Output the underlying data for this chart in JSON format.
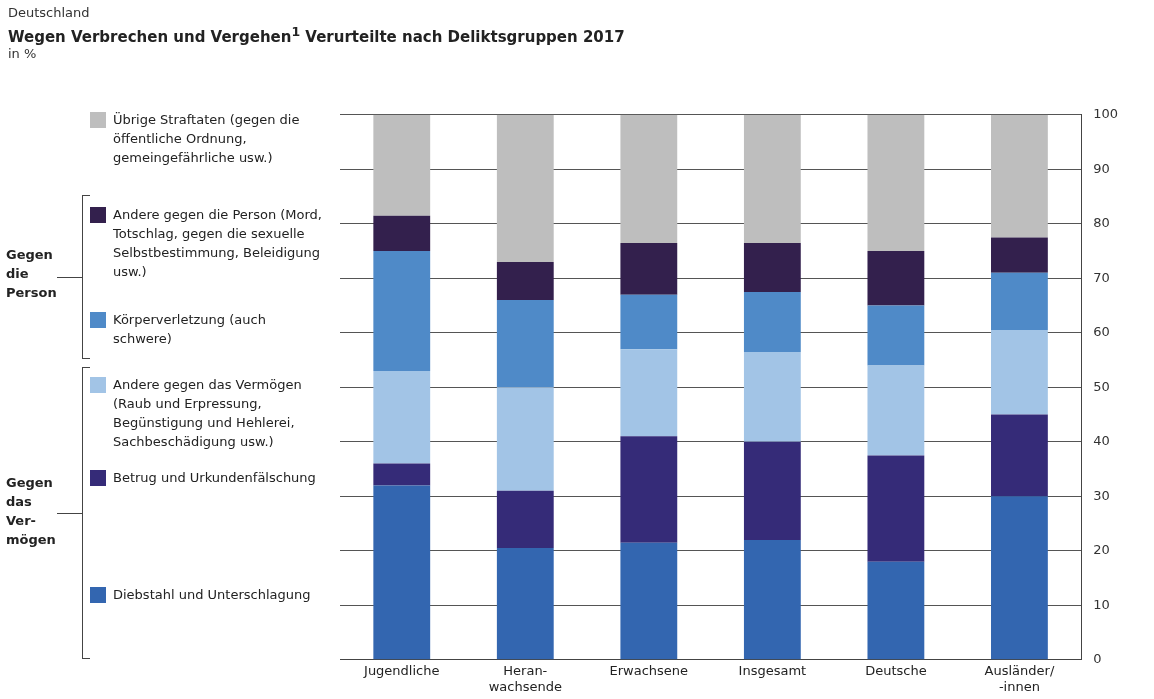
{
  "chart_data": {
    "type": "bar",
    "stacked": true,
    "subtitle": "Deutschland",
    "title": "Wegen Verbrechen und Vergehen$^{1}$ Verurteilte nach Deliktsgruppen 2017",
    "categories": [
      "Jugendliche",
      "Heran-\nwachsende",
      "Erwachsene",
      "Insgesamt",
      "Deutsche",
      "Ausländer/\n-innen"
    ],
    "series": [
      {
        "name": "Diebstahl und Unterschlagung",
        "color": "#3366b0",
        "values": [
          32,
          20.5,
          21.5,
          22,
          18,
          30
        ]
      },
      {
        "name": "Betrug und Urkundenfälschung",
        "color": "#352b78",
        "values": [
          4,
          10.5,
          19.5,
          18,
          19.5,
          15
        ]
      },
      {
        "name": "Andere gegen das Vermögen (Raub und Erpressung, Begünstigung und Hehlerei, Sachbeschädigung usw.)",
        "color": "#a2c4e6",
        "values": [
          17,
          19,
          16,
          16.5,
          16.5,
          15.5
        ]
      },
      {
        "name": "Körperverletzung (auch schwere)",
        "color": "#4f8ac8",
        "values": [
          22,
          16,
          10,
          11,
          11,
          10.5
        ]
      },
      {
        "name": "Andere gegen die Person (Mord, Totschlag, gegen die sexuelle Selbstbestimmung, Beleidigung usw.)",
        "color": "#33204d",
        "values": [
          6.5,
          7,
          9.5,
          9,
          10,
          6.5
        ]
      },
      {
        "name": "Übrige Straftaten (gegen die öffentliche Ordnung, gemeingefährliche usw.)",
        "color": "#bebebe",
        "values": [
          18.5,
          27,
          23.5,
          23.5,
          25,
          22.5
        ]
      }
    ],
    "annotations": [
      "Gegen\ndie\nPerson",
      "Gegen\ndas\nVer-\nmögen",
      "in %"
    ],
    "ylim": [
      0,
      100
    ],
    "yticks": [
      0,
      10,
      20,
      30,
      40,
      50,
      60,
      70,
      80,
      90,
      100
    ],
    "grid": "y",
    "legend": "left"
  }
}
